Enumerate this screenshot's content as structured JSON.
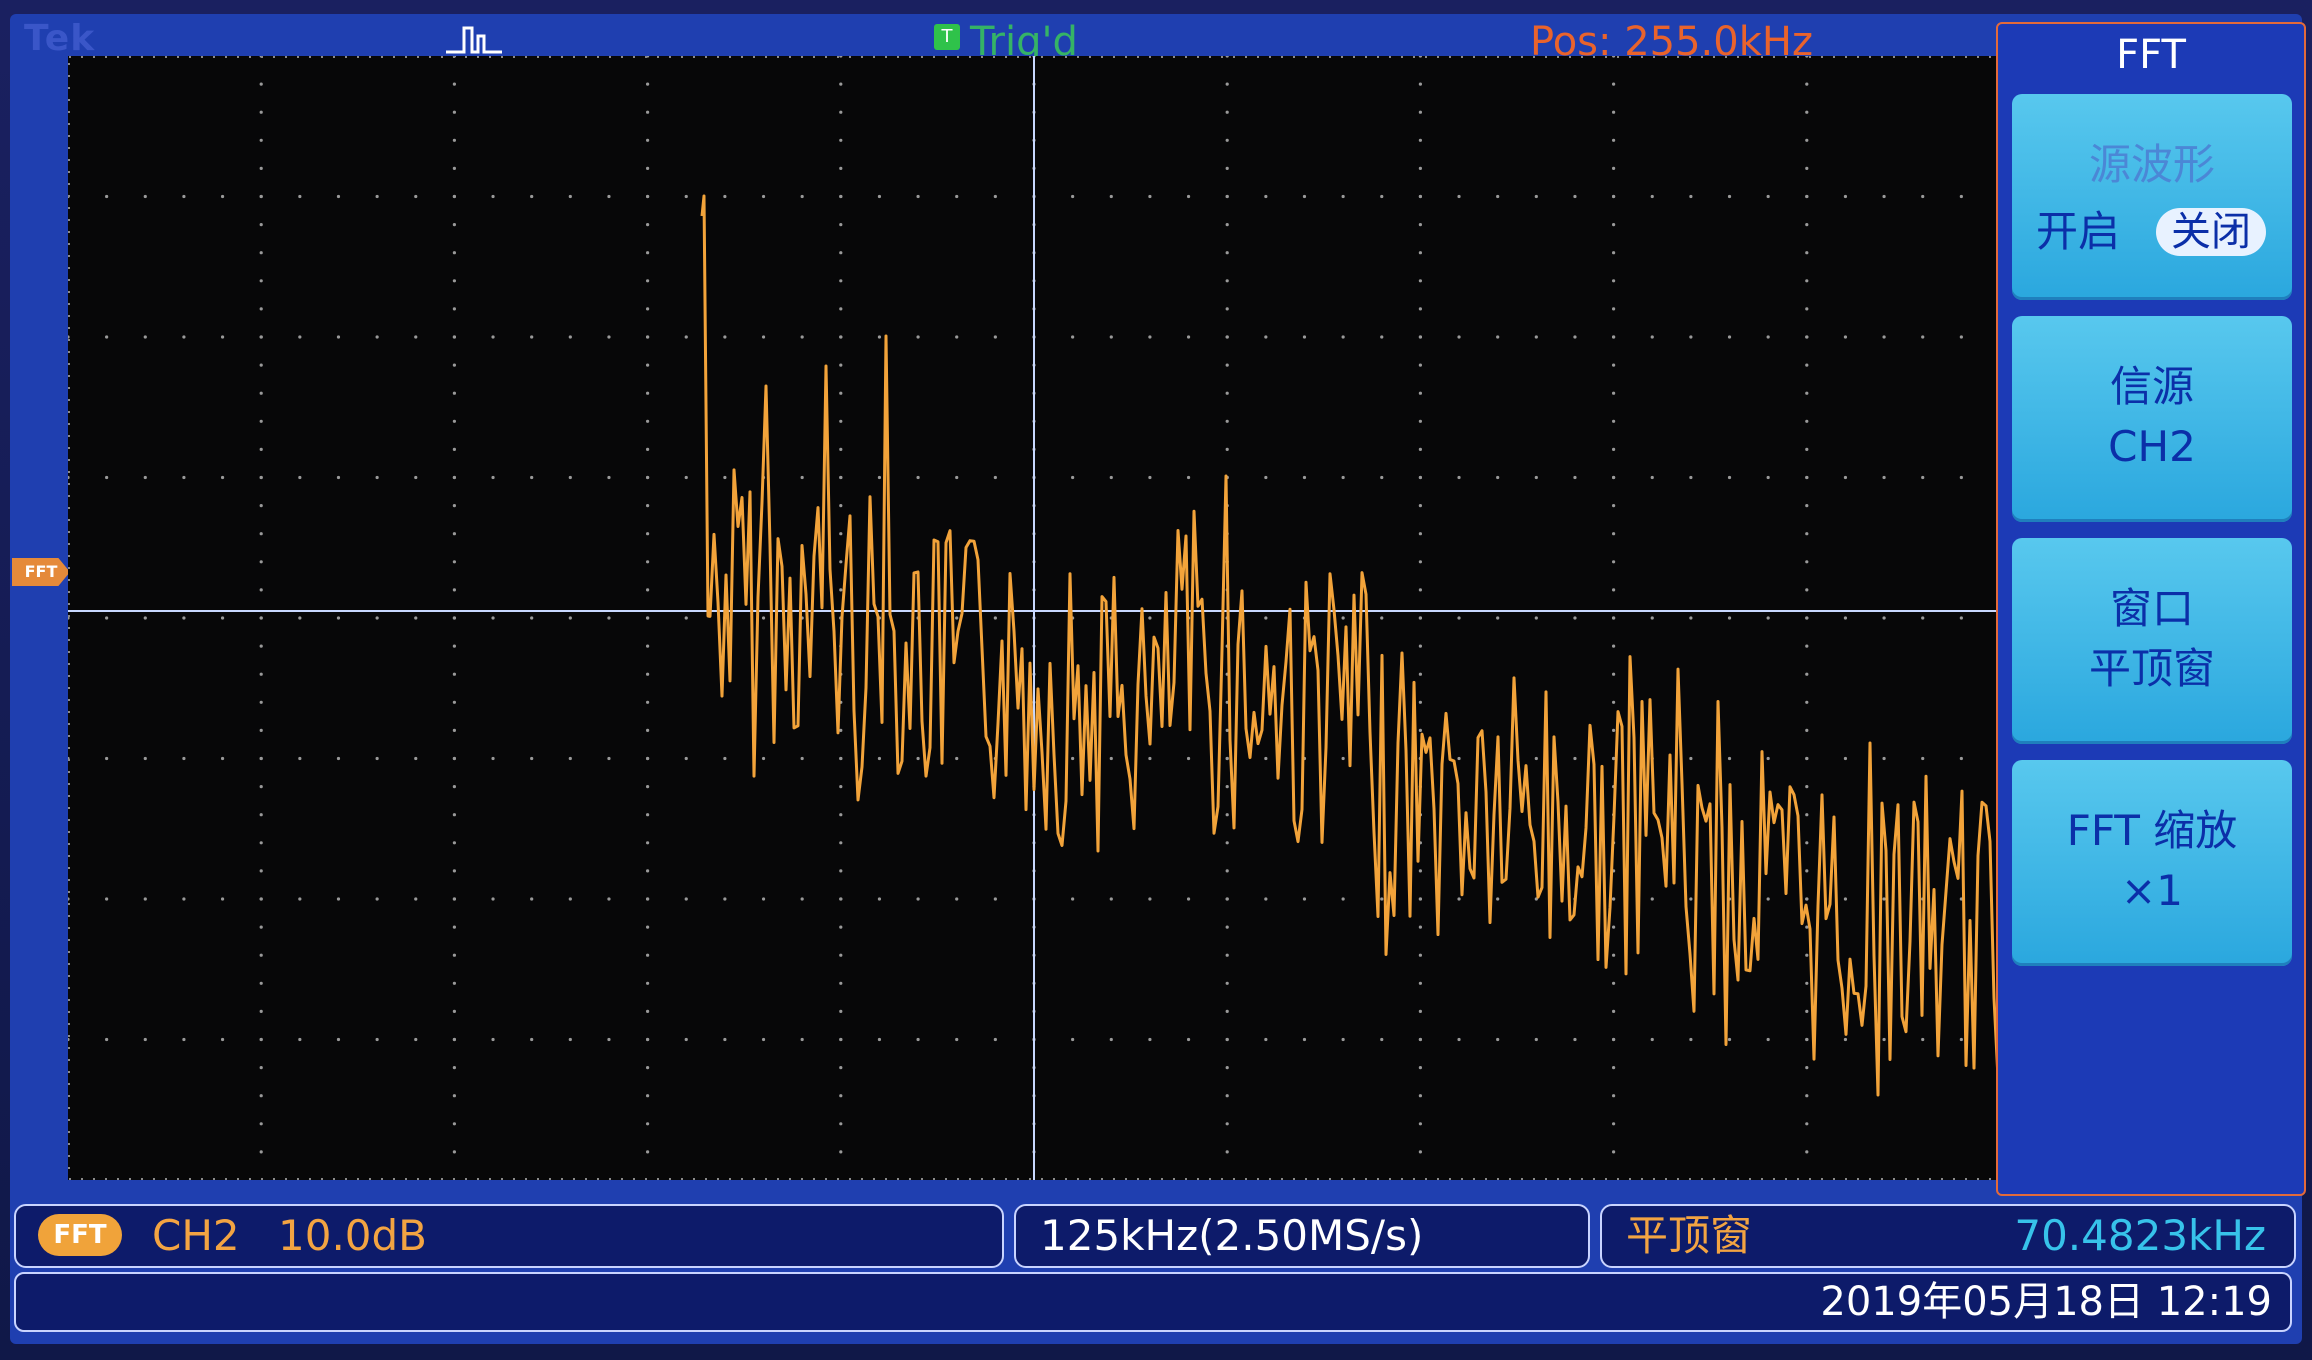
{
  "header": {
    "brand": "Tek",
    "trigger_icon": "pulse-icon",
    "trigger_state_badge": "T",
    "trigger_state": "Trig'd",
    "position": "Pos: 255.0kHz"
  },
  "marker": {
    "label": "FFT"
  },
  "menu": {
    "title": "FFT",
    "buttons": [
      {
        "line1": "源波形",
        "toggle_on": "开启",
        "toggle_off": "关闭"
      },
      {
        "line1": "信源",
        "line2": "CH2"
      },
      {
        "line1": "窗口",
        "line2": "平顶窗"
      },
      {
        "line1": "FFT 缩放",
        "line2": "×1"
      }
    ]
  },
  "status": {
    "badge": "FFT",
    "channel": "CH2",
    "scale": "10.0dB",
    "span": "125kHz(2.50MS/s)",
    "window": "平顶窗",
    "frequency": "70.4823kHz",
    "datetime": "2019年05月18日 12:19"
  },
  "colors": {
    "trace": "#f2a33a",
    "background": "#070708",
    "frame": "#1f3fb0",
    "menu_button": "#3bb6e6"
  }
}
